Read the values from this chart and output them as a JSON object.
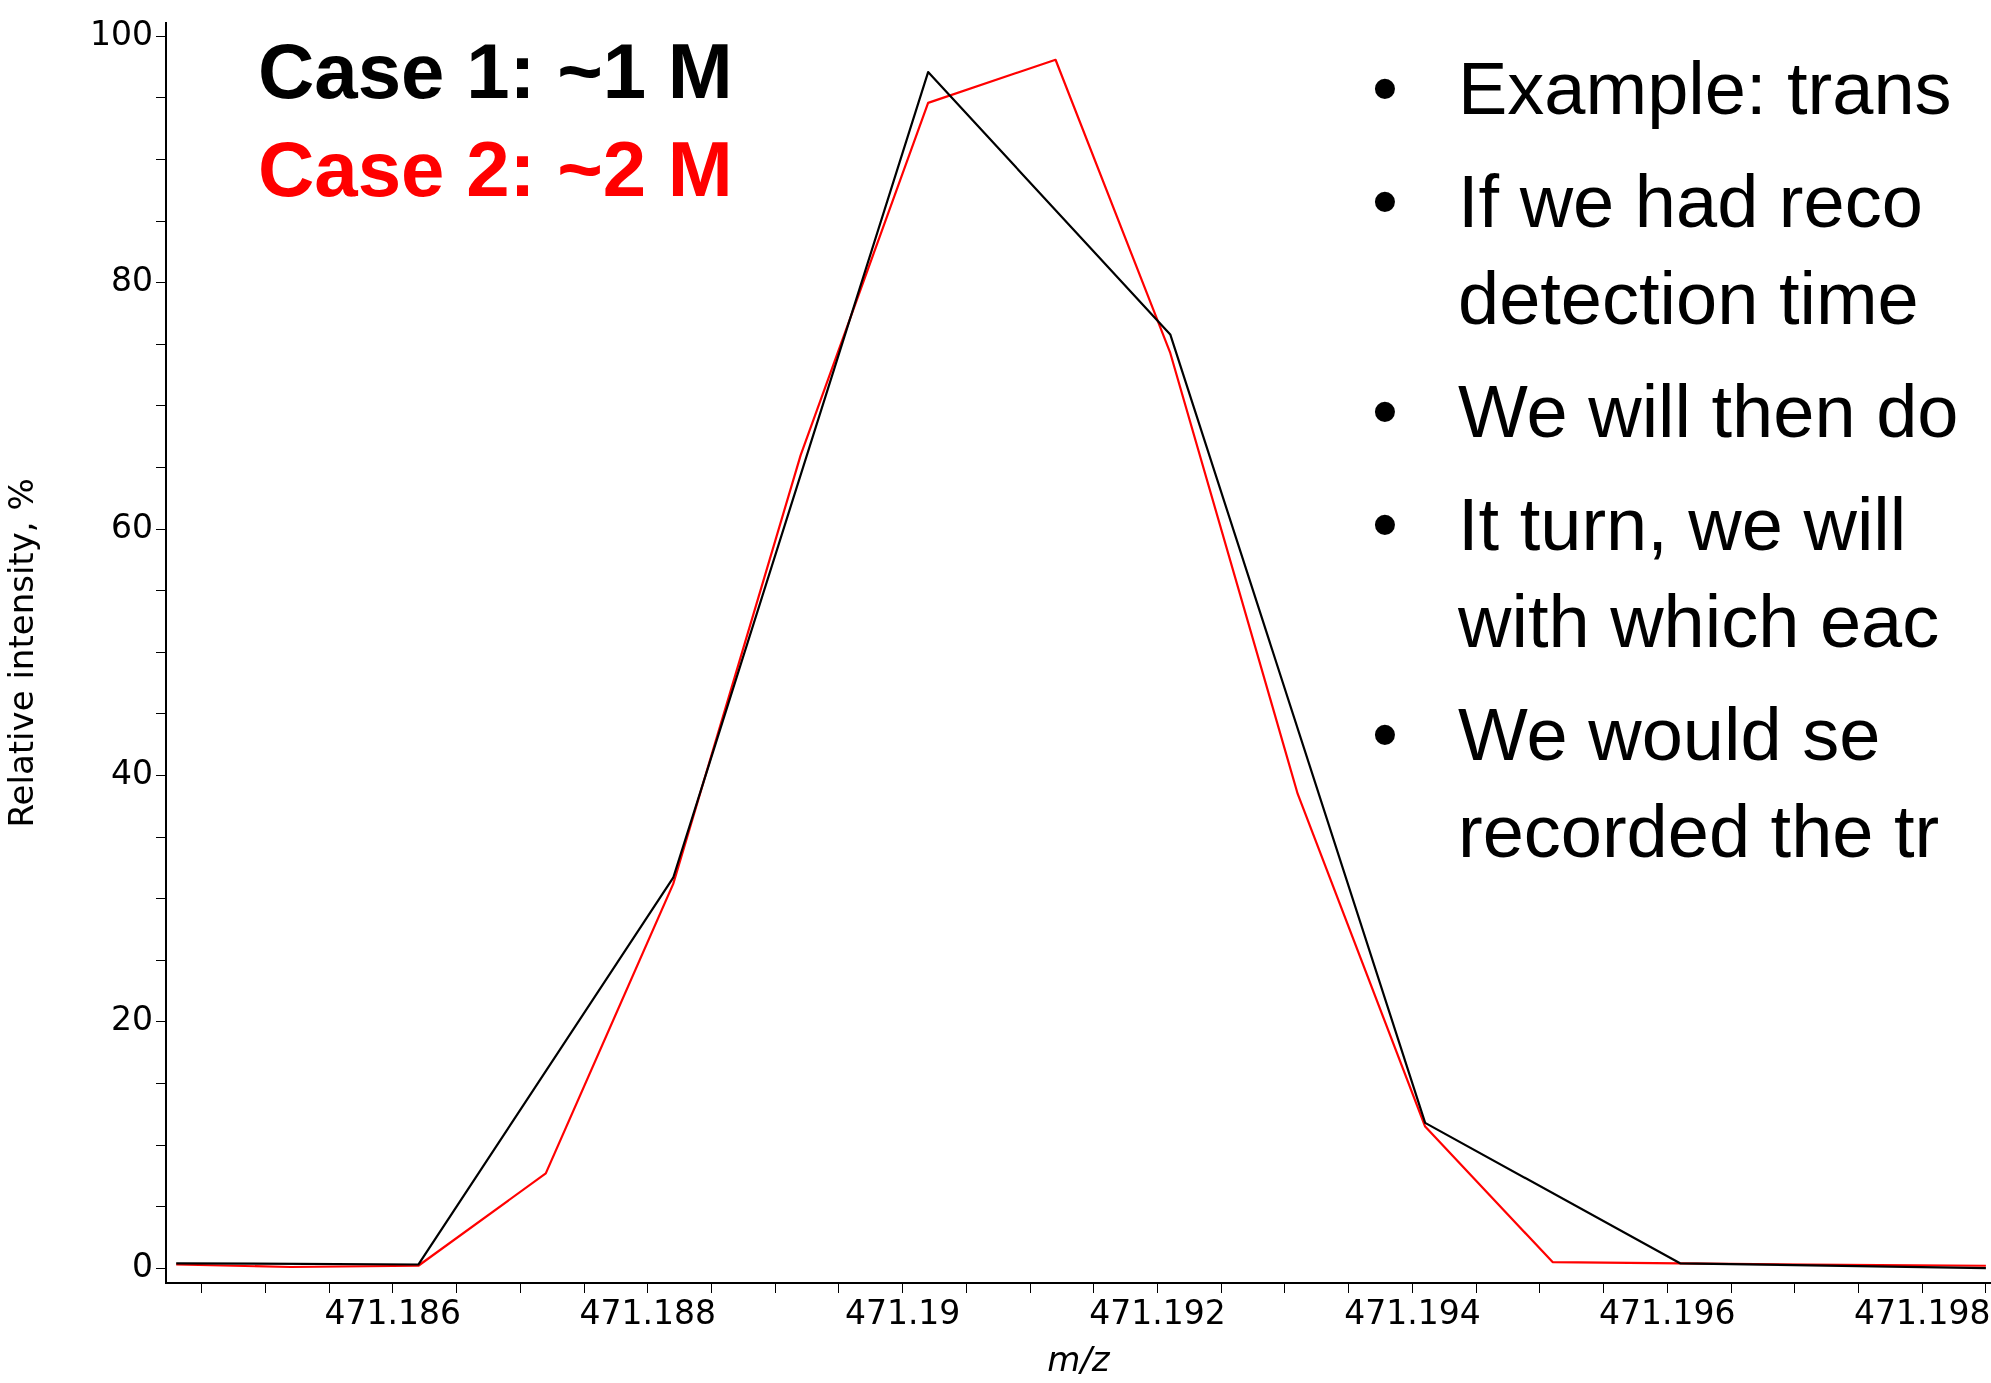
{
  "chart_data": {
    "type": "line",
    "xlabel": "m/z",
    "ylabel": "Relative intensity, %",
    "series": [
      {
        "name": "Case 1: ~1 M",
        "color": "#000000",
        "x": [
          471.1843,
          471.1862,
          471.1882,
          471.1902,
          471.1921,
          471.1941,
          471.1961,
          471.1985
        ],
        "values": [
          0.4,
          0.3,
          31.7,
          97.1,
          75.8,
          11.8,
          0.4,
          0.0
        ]
      },
      {
        "name": "Case 2: ~2 M",
        "color": "#ff0000",
        "x": [
          471.1843,
          471.1852,
          471.1862,
          471.1872,
          471.1882,
          471.1892,
          471.1902,
          471.1912,
          471.1921,
          471.1931,
          471.1941,
          471.1951,
          471.1961,
          471.1971,
          471.1985
        ],
        "values": [
          0.3,
          0.1,
          0.2,
          7.7,
          31.2,
          66,
          94.6,
          98.1,
          74.3,
          38.5,
          11.5,
          0.5,
          0.4,
          0.3,
          0.2
        ]
      }
    ],
    "xlim": [
      471.18422,
      471.19854
    ],
    "xticks": [
      {
        "value": 471.1845,
        "label": null
      },
      {
        "value": 471.185,
        "label": null
      },
      {
        "value": 471.1855,
        "label": null
      },
      471.186,
      {
        "value": 471.1865,
        "label": null
      },
      {
        "value": 471.187,
        "label": null
      },
      {
        "value": 471.1875,
        "label": null
      },
      471.188,
      {
        "value": 471.1885,
        "label": null
      },
      {
        "value": 471.189,
        "label": null
      },
      {
        "value": 471.1895,
        "label": null
      },
      471.19,
      {
        "value": 471.1905,
        "label": null
      },
      {
        "value": 471.191,
        "label": null
      },
      {
        "value": 471.1915,
        "label": null
      },
      471.192,
      {
        "value": 471.1925,
        "label": null
      },
      {
        "value": 471.193,
        "label": null
      },
      {
        "value": 471.1935,
        "label": null
      },
      471.194,
      {
        "value": 471.1945,
        "label": null
      },
      {
        "value": 471.195,
        "label": null
      },
      {
        "value": 471.1955,
        "label": null
      },
      471.196,
      {
        "value": 471.1965,
        "label": null
      },
      {
        "value": 471.197,
        "label": null
      },
      {
        "value": 471.1975,
        "label": null
      },
      471.198,
      {
        "value": 471.1985,
        "label": null
      }
    ],
    "ylim": [
      -1.2,
      101.1
    ],
    "yticks": [
      0,
      {
        "value": 5,
        "label": null
      },
      {
        "value": 10,
        "label": null
      },
      {
        "value": 15,
        "label": null
      },
      20,
      {
        "value": 25,
        "label": null
      },
      {
        "value": 30,
        "label": null
      },
      {
        "value": 35,
        "label": null
      },
      40,
      {
        "value": 45,
        "label": null
      },
      {
        "value": 50,
        "label": null
      },
      {
        "value": 55,
        "label": null
      },
      60,
      {
        "value": 65,
        "label": null
      },
      {
        "value": 70,
        "label": null
      },
      {
        "value": 75,
        "label": null
      },
      80,
      {
        "value": 85,
        "label": null
      },
      {
        "value": 90,
        "label": null
      },
      {
        "value": 95,
        "label": null
      },
      100
    ],
    "legend": "top left",
    "marker": "none",
    "line_style": "solid",
    "annotations": [
      "•\tExample: trans",
      "•\tIf we had reco\ndetection time",
      "•\tWe will then do",
      "•\tIt turn, we will\nwith which eac",
      "•\tWe would se\nrecorded the tr"
    ]
  }
}
